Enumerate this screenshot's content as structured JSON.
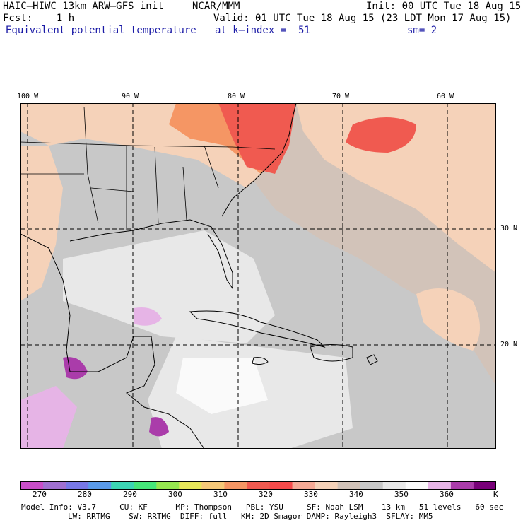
{
  "header": {
    "model": "HAIC–HIWC 13km ARW–GFS init",
    "org": "NCAR/MMM",
    "init": "Init: 00 UTC Tue 18 Aug 15",
    "fcst": "Fcst:    1 h",
    "valid": "Valid: 01 UTC Tue 18 Aug 15 (23 LDT Mon 17 Aug 15)",
    "field": "Equivalent potential temperature",
    "level": "at k–index =  51",
    "smooth": "sm= 2"
  },
  "map": {
    "lon_labels": [
      "100 W",
      "90 W",
      "80 W",
      "70 W",
      "60 W"
    ],
    "lat_labels": [
      "30 N",
      "20 N"
    ]
  },
  "colorbar": {
    "labels": [
      "270",
      "280",
      "290",
      "300",
      "310",
      "320",
      "330",
      "340",
      "350",
      "360"
    ],
    "unit": "K",
    "colors": [
      "#c84ec8",
      "#a070d0",
      "#7878e6",
      "#5a9aea",
      "#3cd6b4",
      "#46e67a",
      "#96e650",
      "#e6e65a",
      "#f5c878",
      "#f59664",
      "#f05a50",
      "#f54b4b",
      "#f5aa96",
      "#f5d2b9",
      "#d2c3b9",
      "#c8c8c8",
      "#e8e8e8",
      "#fafafa",
      "#e6b4e6",
      "#aa3caa",
      "#780078"
    ]
  },
  "footer": {
    "line1": "Model Info: V3.7     CU: KF      MP: Thompson   PBL: YSU     SF: Noah LSM    13 km   51 levels   60 sec",
    "line2": "LW: RRTMG    SW: RRTMG  DIFF: full   KM: 2D Smagor DAMP: Rayleigh3  SFLAY: MM5"
  }
}
